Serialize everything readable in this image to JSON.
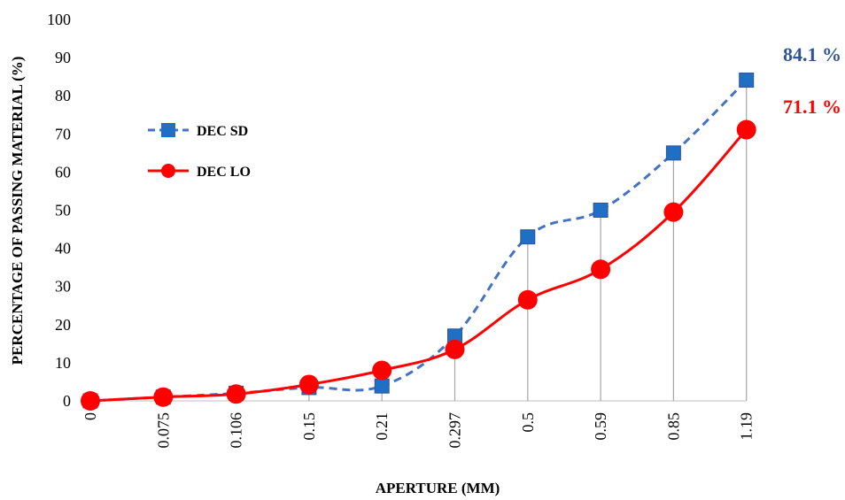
{
  "chart_data": {
    "type": "line",
    "categories": [
      "0",
      "0.075",
      "0.106",
      "0.15",
      "0.21",
      "0.297",
      "0.5",
      "0.59",
      "0.85",
      "1.19"
    ],
    "series": [
      {
        "name": "DEC SD",
        "color": "#4472C4",
        "marker_color": "#1F6FC5",
        "line_style": "dashed",
        "marker": "square",
        "values": [
          0,
          1,
          2,
          3.5,
          3.9,
          17,
          43,
          50,
          65,
          84.1
        ],
        "end_label": "84.1 %"
      },
      {
        "name": "DEC LO",
        "color": "#FF0000",
        "line_style": "solid",
        "marker": "circle",
        "values": [
          0,
          1,
          1.8,
          4.3,
          8,
          13.5,
          26.5,
          34.5,
          49.5,
          71.1
        ],
        "end_label": "71.1 %"
      }
    ],
    "yticks": [
      "0",
      "10",
      "20",
      "30",
      "40",
      "50",
      "60",
      "70",
      "80",
      "90",
      "100"
    ],
    "ylim": [
      0,
      100
    ],
    "xlabel": "APERTURE (MM)",
    "ylabel": "PERCENTAGE OF PASSING MATERIAL (%)",
    "drop_lines": true,
    "legend_placement": "left-upper"
  }
}
